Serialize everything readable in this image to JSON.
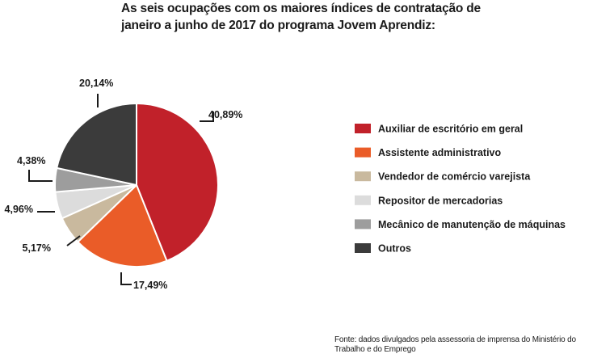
{
  "chart_data": {
    "type": "pie",
    "title": "As seis ocupações com os maiores índices de contratação de janeiro a junho de 2017 do programa Jovem Aprendiz:",
    "categories": [
      "Auxiliar de escritório em geral",
      "Assistente administrativo",
      "Vendedor de comércio varejista",
      "Repositor de mercadorias",
      "Mecânico de manutenção de máquinas",
      "Outros"
    ],
    "values": [
      40.89,
      17.49,
      5.17,
      4.96,
      4.38,
      20.14
    ],
    "data_labels": [
      "40,89%",
      "17,49%",
      "5,17%",
      "4,96%",
      "4,38%",
      "20,14%"
    ],
    "colors": [
      "#c1212a",
      "#ea5c28",
      "#c9b99e",
      "#dcdcdc",
      "#9d9d9d",
      "#3b3b3b"
    ],
    "legend_position": "right",
    "source": "Fonte: dados divulgados pela assessoria de imprensa do Ministério do Trabalho e do Emprego"
  }
}
